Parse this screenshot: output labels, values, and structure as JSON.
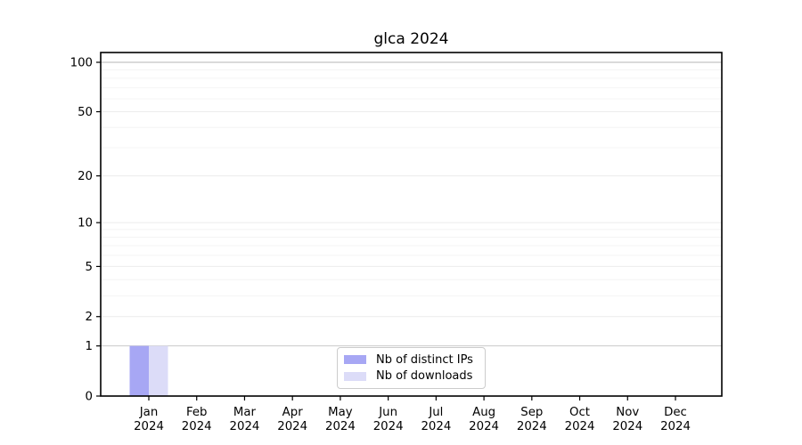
{
  "chart_data": {
    "type": "bar",
    "title": "glca 2024",
    "categories": [
      "Jan 2024",
      "Feb 2024",
      "Mar 2024",
      "Apr 2024",
      "May 2024",
      "Jun 2024",
      "Jul 2024",
      "Aug 2024",
      "Sep 2024",
      "Oct 2024",
      "Nov 2024",
      "Dec 2024"
    ],
    "month_labels": [
      "Jan",
      "Feb",
      "Mar",
      "Apr",
      "May",
      "Jun",
      "Jul",
      "Aug",
      "Sep",
      "Oct",
      "Nov",
      "Dec"
    ],
    "year_label": "2024",
    "series": [
      {
        "name": "Nb of distinct IPs",
        "color": "#a7a7f4",
        "values": [
          1,
          0,
          0,
          0,
          0,
          0,
          0,
          0,
          0,
          0,
          0,
          0
        ]
      },
      {
        "name": "Nb of downloads",
        "color": "#dcdcf8",
        "values": [
          1,
          0,
          0,
          0,
          0,
          0,
          0,
          0,
          0,
          0,
          0,
          0
        ]
      }
    ],
    "yscale": "log1p",
    "ylim": [
      0,
      100
    ],
    "yticks": [
      0,
      1,
      2,
      5,
      10,
      20,
      50,
      100
    ],
    "yticks_minor": [
      3,
      4,
      6,
      7,
      8,
      9,
      30,
      40,
      60,
      70,
      80,
      90
    ],
    "grid": true,
    "legend_position": "inside-bottom-center"
  },
  "colors": {
    "axis": "#000000",
    "grid_strong": "#b5b5b5",
    "grid_one": "#c9c9c9",
    "grid_major": "#ececec",
    "grid_minor": "#f4f4f4",
    "legend_border": "#cccccc",
    "text": "#000000"
  }
}
